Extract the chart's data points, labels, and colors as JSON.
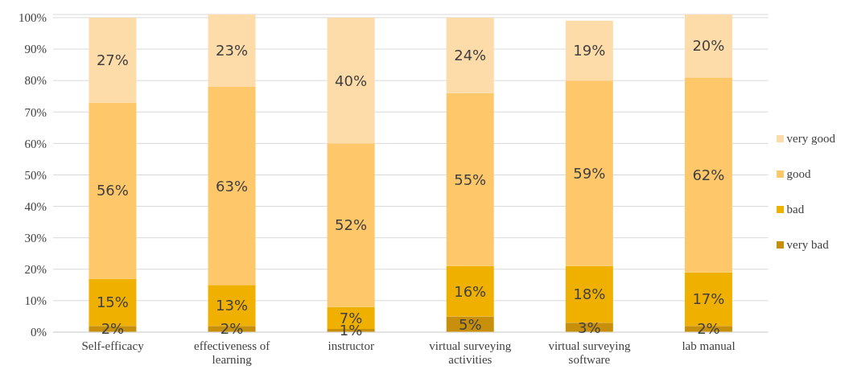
{
  "chart_data": {
    "type": "bar",
    "stacked": true,
    "categories": [
      "Self-efficacy",
      "effectiveness of learning",
      "instructor",
      "virtual surveying activities",
      "virtual surveying software",
      "lab manual"
    ],
    "series": [
      {
        "name": "very bad",
        "color": "#c8900a",
        "values": [
          2,
          2,
          1,
          5,
          3,
          2
        ],
        "value_labels": [
          "2%",
          "2%",
          "1%",
          "5%",
          "3%",
          "2%"
        ]
      },
      {
        "name": "bad",
        "color": "#f0b000",
        "values": [
          15,
          13,
          7,
          16,
          18,
          17
        ],
        "value_labels": [
          "15%",
          "13%",
          "7%",
          "16%",
          "18%",
          "17%"
        ]
      },
      {
        "name": "good",
        "color": "#fec86a",
        "values": [
          56,
          63,
          52,
          55,
          59,
          62
        ],
        "value_labels": [
          "56%",
          "63%",
          "52%",
          "55%",
          "59%",
          "62%"
        ]
      },
      {
        "name": "very good",
        "color": "#fedcaa",
        "values": [
          27,
          23,
          40,
          24,
          19,
          20
        ],
        "value_labels": [
          "27%",
          "23%",
          "40%",
          "24%",
          "19%",
          "20%"
        ]
      }
    ],
    "ylim": [
      0,
      101
    ],
    "yticks": [
      {
        "value": 0,
        "label": "0%"
      },
      {
        "value": 10,
        "label": "10%"
      },
      {
        "value": 20,
        "label": "20%"
      },
      {
        "value": 30,
        "label": "30%"
      },
      {
        "value": 40,
        "label": "40%"
      },
      {
        "value": 50,
        "label": "50%"
      },
      {
        "value": 60,
        "label": "60%"
      },
      {
        "value": 70,
        "label": "70%"
      },
      {
        "value": 80,
        "label": "80%"
      },
      {
        "value": 90,
        "label": "90%"
      },
      {
        "value": 100,
        "label": "100%"
      }
    ],
    "grid": "y",
    "legend": "right"
  }
}
